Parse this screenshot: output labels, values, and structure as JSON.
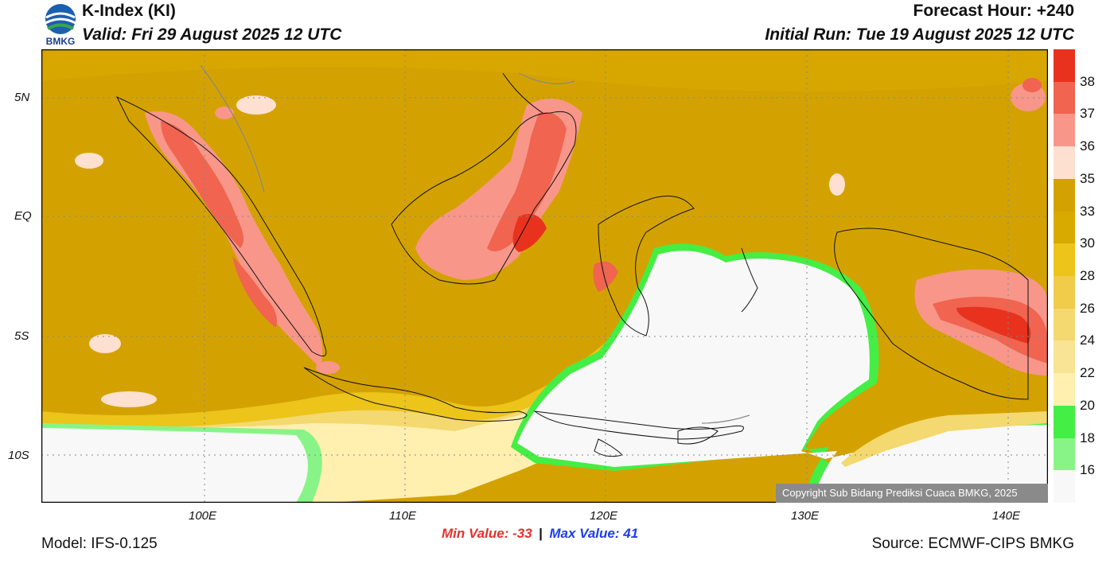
{
  "header": {
    "logo_text": "BMKG",
    "title": "K-Index (KI)",
    "valid": "Valid: Fri 29 August 2025 12 UTC",
    "forecast_hour": "Forecast Hour: +240",
    "initial_run": "Initial Run: Tue 19 August 2025 12 UTC"
  },
  "map": {
    "lat_labels": [
      "5N",
      "EQ",
      "5S",
      "10S"
    ],
    "lon_labels": [
      "100E",
      "110E",
      "120E",
      "130E",
      "140E"
    ],
    "copyright": "Copyright Sub Bidang Prediksi Cuaca BMKG, 2025"
  },
  "colorbar": {
    "labels": [
      "38",
      "37",
      "36",
      "35",
      "33",
      "30",
      "28",
      "26",
      "24",
      "22",
      "20",
      "18",
      "16"
    ],
    "colors": [
      "#e8321e",
      "#f06450",
      "#f8968a",
      "#fde0d0",
      "#d4a200",
      "#d8aa00",
      "#ecc41a",
      "#f0cc4a",
      "#f4d870",
      "#f8e494",
      "#fff0b0",
      "#44ee44",
      "#88f488",
      "#f8f8f8"
    ]
  },
  "stats": {
    "min_label": "Min Value: -33",
    "separator": "|",
    "max_label": "Max Value:  41"
  },
  "footer": {
    "model": "Model: IFS-0.125",
    "source": "Source: ECMWF-CIPS BMKG"
  }
}
